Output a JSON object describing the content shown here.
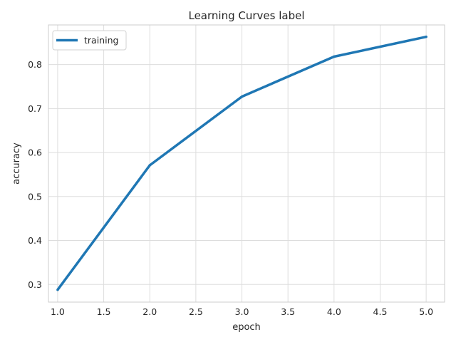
{
  "chart_data": {
    "type": "line",
    "title": "Learning Curves label",
    "xlabel": "epoch",
    "ylabel": "accuracy",
    "x": [
      1.0,
      2.0,
      3.0,
      4.0,
      5.0
    ],
    "series": [
      {
        "name": "training",
        "values": [
          0.288,
          0.571,
          0.727,
          0.818,
          0.863
        ],
        "color": "#1f77b4"
      }
    ],
    "xlim": [
      0.9,
      5.2
    ],
    "ylim": [
      0.26,
      0.89
    ],
    "xticks": [
      1.0,
      1.5,
      2.0,
      2.5,
      3.0,
      3.5,
      4.0,
      4.5,
      5.0
    ],
    "xtick_labels": [
      "1.0",
      "1.5",
      "2.0",
      "2.5",
      "3.0",
      "3.5",
      "4.0",
      "4.5",
      "5.0"
    ],
    "yticks": [
      0.3,
      0.4,
      0.5,
      0.6,
      0.7,
      0.8
    ],
    "ytick_labels": [
      "0.3",
      "0.4",
      "0.5",
      "0.6",
      "0.7",
      "0.8"
    ],
    "grid": true,
    "legend": "top-left"
  }
}
